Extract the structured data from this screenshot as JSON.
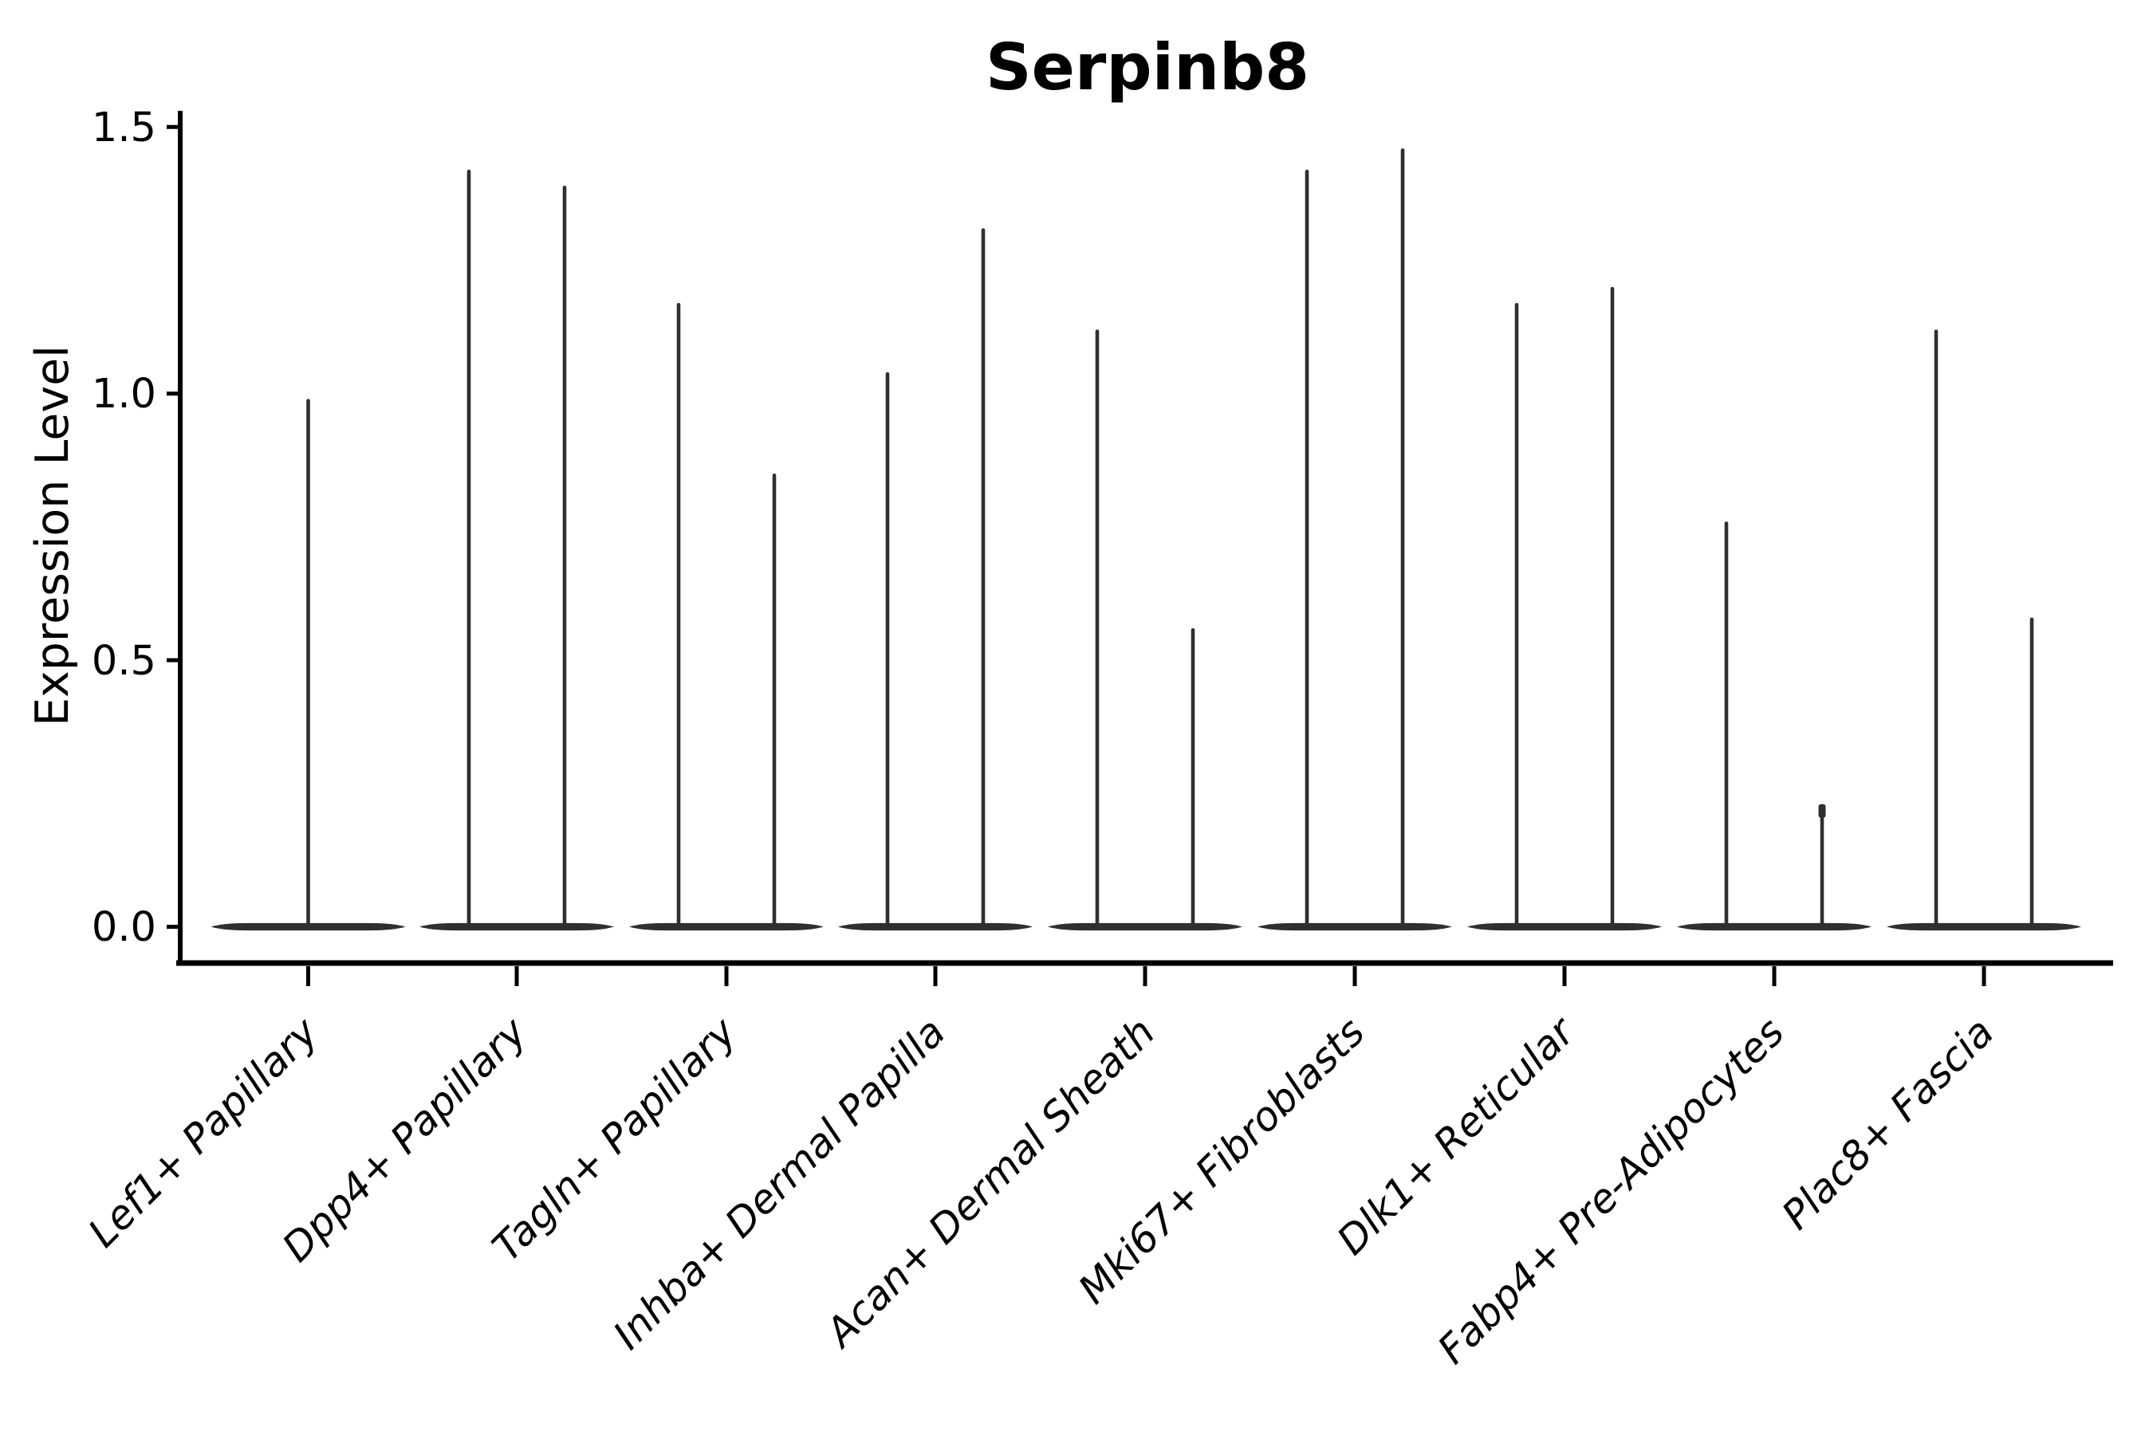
{
  "chart_data": {
    "type": "violin",
    "title": "Serpinb8",
    "ylabel": "Expression Level",
    "xlabel": "",
    "yticks": [
      "0.0",
      "0.5",
      "1.0",
      "1.5"
    ],
    "ytick_values": [
      0.0,
      0.5,
      1.0,
      1.5
    ],
    "ylim": [
      0.0,
      1.5
    ],
    "grid": false,
    "legend": false,
    "categories": [
      "Lef1+ Papillary",
      "Dpp4+ Papillary",
      "Tagln+ Papillary",
      "Inhba+ Dermal Papilla",
      "Acan+ Dermal Sheath",
      "Mki67+ Fibroblasts",
      "Dlk1+ Reticular",
      "Fabp4+ Pre-Adipocytes",
      "Plac8+ Fascia"
    ],
    "violins": [
      {
        "category": "Lef1+ Papillary",
        "category_index": 0,
        "position": "center",
        "max_expression": 0.99,
        "bulk_at_zero": true
      },
      {
        "category": "Dpp4+ Papillary",
        "category_index": 1,
        "position": "left",
        "max_expression": 1.42,
        "bulk_at_zero": true
      },
      {
        "category": "Dpp4+ Papillary",
        "category_index": 1,
        "position": "right",
        "max_expression": 1.39,
        "bulk_at_zero": true
      },
      {
        "category": "Tagln+ Papillary",
        "category_index": 2,
        "position": "left",
        "max_expression": 1.17,
        "bulk_at_zero": true
      },
      {
        "category": "Tagln+ Papillary",
        "category_index": 2,
        "position": "right",
        "max_expression": 0.85,
        "bulk_at_zero": true
      },
      {
        "category": "Inhba+ Dermal Papilla",
        "category_index": 3,
        "position": "left",
        "max_expression": 1.04,
        "bulk_at_zero": true
      },
      {
        "category": "Inhba+ Dermal Papilla",
        "category_index": 3,
        "position": "right",
        "max_expression": 1.31,
        "bulk_at_zero": true
      },
      {
        "category": "Acan+ Dermal Sheath",
        "category_index": 4,
        "position": "left",
        "max_expression": 1.12,
        "bulk_at_zero": true
      },
      {
        "category": "Acan+ Dermal Sheath",
        "category_index": 4,
        "position": "right",
        "max_expression": 0.56,
        "bulk_at_zero": true
      },
      {
        "category": "Mki67+ Fibroblasts",
        "category_index": 5,
        "position": "left",
        "max_expression": 1.42,
        "bulk_at_zero": true
      },
      {
        "category": "Mki67+ Fibroblasts",
        "category_index": 5,
        "position": "right",
        "max_expression": 1.46,
        "bulk_at_zero": true
      },
      {
        "category": "Dlk1+ Reticular",
        "category_index": 6,
        "position": "left",
        "max_expression": 1.17,
        "bulk_at_zero": true
      },
      {
        "category": "Dlk1+ Reticular",
        "category_index": 6,
        "position": "right",
        "max_expression": 1.2,
        "bulk_at_zero": true
      },
      {
        "category": "Fabp4+ Pre-Adipocytes",
        "category_index": 7,
        "position": "left",
        "max_expression": 0.76,
        "bulk_at_zero": true
      },
      {
        "category": "Fabp4+ Pre-Adipocytes",
        "category_index": 7,
        "position": "right",
        "max_expression": 0.23,
        "bulk_at_zero": true,
        "cap": true
      },
      {
        "category": "Plac8+ Fascia",
        "category_index": 8,
        "position": "left",
        "max_expression": 1.12,
        "bulk_at_zero": true
      },
      {
        "category": "Plac8+ Fascia",
        "category_index": 8,
        "position": "right",
        "max_expression": 0.58,
        "bulk_at_zero": true
      }
    ],
    "colors": {
      "ink": "#2f2f2f",
      "axis": "#000000",
      "background": "#ffffff"
    }
  }
}
